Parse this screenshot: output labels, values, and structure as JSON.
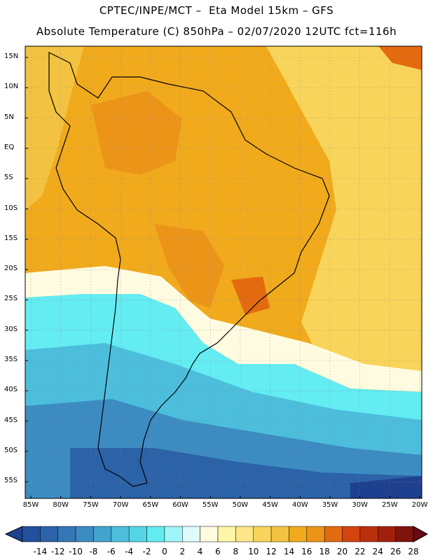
{
  "header": {
    "line1": "CPTEC/INPE/MCT –  Eta Model 15km – GFS",
    "line2": "Absolute Temperature (C) 850hPa – 02/07/2020 12UTC fct=116h"
  },
  "map": {
    "region": "South America",
    "lat_labels": [
      "15N",
      "10N",
      "5N",
      "EQ",
      "5S",
      "10S",
      "15S",
      "20S",
      "25S",
      "30S",
      "35S",
      "40S",
      "45S",
      "50S",
      "55S"
    ],
    "lon_labels": [
      "85W",
      "80W",
      "75W",
      "70W",
      "65W",
      "60W",
      "55W",
      "50W",
      "45W",
      "40W",
      "35W",
      "30W",
      "25W",
      "20W"
    ],
    "gridlines": "dotted"
  },
  "colorbar": {
    "labels": [
      "-14",
      "-12",
      "-10",
      "-8",
      "-6",
      "-4",
      "-2",
      "0",
      "2",
      "4",
      "6",
      "8",
      "10",
      "12",
      "14",
      "16",
      "18",
      "20",
      "22",
      "24",
      "26",
      "28"
    ],
    "colors": [
      "#1f3f8f",
      "#23509c",
      "#2b62a8",
      "#3576b5",
      "#3c8cc2",
      "#43a4cf",
      "#4cbedc",
      "#55d6e6",
      "#63ecf2",
      "#9ff6f8",
      "#e0fbfb",
      "#fffbe0",
      "#fff5a8",
      "#fde68a",
      "#f8d55a",
      "#f3c240",
      "#f0aa1c",
      "#ec9418",
      "#e46a10",
      "#d4440c",
      "#bb300c",
      "#a0200c",
      "#80140c",
      "#6a0a14"
    ]
  }
}
